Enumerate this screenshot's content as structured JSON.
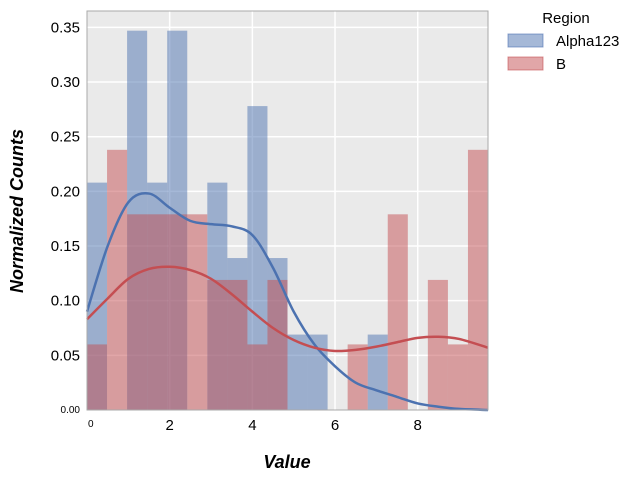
{
  "chart_data": {
    "type": "bar",
    "subtype": "histogram-with-kde",
    "xlabel": "Value",
    "ylabel": "Normalized Counts",
    "xlim": [
      0,
      9.7
    ],
    "ylim": [
      0,
      0.365
    ],
    "xticks": [
      {
        "value": 0,
        "label": "0",
        "small": true
      },
      {
        "value": 2,
        "label": "2"
      },
      {
        "value": 4,
        "label": "4"
      },
      {
        "value": 6,
        "label": "6"
      },
      {
        "value": 8,
        "label": "8"
      }
    ],
    "yticks": [
      {
        "value": 0.0,
        "label": "0.00",
        "small": true
      },
      {
        "value": 0.05,
        "label": "0.05"
      },
      {
        "value": 0.1,
        "label": "0.10"
      },
      {
        "value": 0.15,
        "label": "0.15"
      },
      {
        "value": 0.2,
        "label": "0.20"
      },
      {
        "value": 0.25,
        "label": "0.25"
      },
      {
        "value": 0.3,
        "label": "0.30"
      },
      {
        "value": 0.35,
        "label": "0.35"
      }
    ],
    "grid": true,
    "legend": {
      "title": "Region",
      "placement": "outside-top-right"
    },
    "bin_width": 0.485,
    "series": [
      {
        "name": "Alpha123",
        "color": "#4c72b0",
        "bin_starts": [
          0,
          0.97,
          1.455,
          1.94,
          2.91,
          3.395,
          3.88,
          4.365,
          4.85,
          5.335,
          6.79
        ],
        "values": [
          0.208,
          0.347,
          0.208,
          0.347,
          0.208,
          0.139,
          0.278,
          0.139,
          0.069,
          0.069,
          0.069
        ],
        "kde": {
          "x": [
            0,
            0.5,
            1,
            1.5,
            2,
            2.5,
            3,
            3.5,
            4,
            4.5,
            5,
            5.5,
            6,
            6.5,
            7,
            7.5,
            8,
            8.5,
            9,
            9.7
          ],
          "y": [
            0.09,
            0.15,
            0.19,
            0.198,
            0.185,
            0.173,
            0.17,
            0.168,
            0.16,
            0.13,
            0.09,
            0.06,
            0.04,
            0.025,
            0.018,
            0.012,
            0.006,
            0.003,
            0.001,
            0.0
          ]
        }
      },
      {
        "name": "B",
        "color": "#c44e52",
        "bin_starts": [
          0,
          0.485,
          0.97,
          1.455,
          1.94,
          2.425,
          2.91,
          3.395,
          3.88,
          4.365,
          6.305,
          7.275,
          8.245,
          8.73,
          9.215
        ],
        "values": [
          0.06,
          0.238,
          0.179,
          0.179,
          0.179,
          0.179,
          0.119,
          0.119,
          0.06,
          0.119,
          0.06,
          0.179,
          0.119,
          0.06,
          0.238
        ],
        "kde": {
          "x": [
            0,
            0.5,
            1,
            1.5,
            2,
            2.5,
            3,
            3.5,
            4,
            4.5,
            5,
            5.5,
            6,
            6.5,
            7,
            7.5,
            8,
            8.5,
            9,
            9.7
          ],
          "y": [
            0.083,
            0.102,
            0.12,
            0.129,
            0.131,
            0.128,
            0.12,
            0.106,
            0.09,
            0.075,
            0.064,
            0.057,
            0.054,
            0.055,
            0.058,
            0.062,
            0.066,
            0.067,
            0.065,
            0.057
          ]
        }
      }
    ]
  }
}
